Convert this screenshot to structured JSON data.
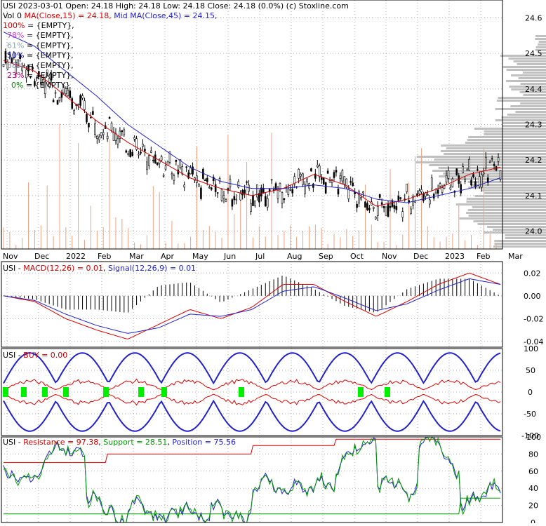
{
  "colors": {
    "background": "#ffffff",
    "grid": "#b0b0b0",
    "candle": "#000000",
    "ma_short": "#dd0000",
    "ma_mid": "#2222cc",
    "volume_bar": "#f0a080",
    "volume_profile": "#c0c0c0",
    "buy_marker": "#00ee00",
    "support": "#009900",
    "fib_100": "#cc0000",
    "fib_78": "#cc44cc",
    "fib_61": "#88aaaa",
    "fib_50": "#0000aa",
    "fib_38": "#8888aa",
    "fib_23": "#cc0088",
    "fib_0": "#008800"
  },
  "header": {
    "line1": "USI  2023-03-01 Open: 24.18  High: 24.18  Low: 24.18  Close: 24.18 (0.0%)  (c) Stoxline.com",
    "vol_prefix": "Vol 0  ",
    "ma_short_label": "MA(Close,15) = 24.18,",
    "ma_mid_label": " Mid MA(Close,45) = 24.15,",
    "fib": [
      {
        "pct": "100%",
        "text": " = {EMPTY},",
        "color": "#cc0000"
      },
      {
        "pct": "78%",
        "text": " = {EMPTY},",
        "color": "#cc44cc"
      },
      {
        "pct": "61%",
        "text": " = {EMPTY},",
        "color": "#88aaaa"
      },
      {
        "pct": "50%",
        "text": " = {EMPTY},",
        "color": "#0000aa"
      },
      {
        "pct": "38%",
        "text": " = {EMPTY},",
        "color": "#8888aa"
      },
      {
        "pct": "23%",
        "text": " = {EMPTY},",
        "color": "#cc0088"
      },
      {
        "pct": "0%",
        "text": " = {EMPTY}",
        "color": "#008800"
      }
    ]
  },
  "chart_data": [
    {
      "type": "candlestick",
      "panel": "price",
      "ylim": [
        23.95,
        24.65
      ],
      "y_ticks": [
        "24.0",
        "24.1",
        "24.2",
        "24.3",
        "24.4",
        "24.5",
        "24.6"
      ],
      "x_ticks": [
        "Nov",
        "Dec",
        "2022",
        "Feb",
        "Mar",
        "Apr",
        "May",
        "Jun",
        "Jul",
        "Aug",
        "Sep",
        "Oct",
        "Nov",
        "Dec",
        "2023",
        "Feb",
        "Mar"
      ],
      "ma_short_close": [
        24.48,
        24.45,
        24.38,
        24.31,
        24.25,
        24.2,
        24.15,
        24.12,
        24.1,
        24.12,
        24.16,
        24.13,
        24.07,
        24.09,
        24.12,
        24.16,
        24.18
      ],
      "ma_mid_close": [
        24.56,
        24.52,
        24.45,
        24.38,
        24.3,
        24.24,
        24.18,
        24.14,
        24.12,
        24.12,
        24.13,
        24.12,
        24.09,
        24.08,
        24.1,
        24.12,
        24.15
      ],
      "grid": true
    },
    {
      "type": "line",
      "panel": "macd",
      "title": "USI - MACD(12,26) = 0.01, Signal(12,26,9) = 0.01",
      "ylim": [
        -0.045,
        0.03
      ],
      "y_ticks": [
        "0.02",
        "0.00",
        "-0.02",
        "-0.04"
      ],
      "macd": [
        0.0,
        -0.005,
        -0.02,
        -0.03,
        -0.038,
        -0.025,
        -0.012,
        -0.02,
        -0.01,
        0.01,
        0.01,
        -0.005,
        -0.018,
        -0.005,
        0.01,
        0.02,
        0.01
      ],
      "signal": [
        0.0,
        -0.004,
        -0.016,
        -0.026,
        -0.033,
        -0.028,
        -0.016,
        -0.018,
        -0.012,
        0.004,
        0.008,
        -0.002,
        -0.013,
        -0.007,
        0.005,
        0.015,
        0.01
      ]
    },
    {
      "type": "line",
      "panel": "buy",
      "title": "USI - BUY = 0.00",
      "ylim": [
        -100,
        100
      ],
      "y_ticks": [
        "100",
        "50",
        "0",
        "-50",
        "-100"
      ]
    },
    {
      "type": "line",
      "panel": "position",
      "title": "USI - Resistance = 97.38, Support = 28.51, Position = 75.56",
      "resistance": 97.38,
      "support": 28.51,
      "position": 75.56,
      "ylim": [
        0,
        100
      ],
      "y_ticks": [
        "100",
        "80",
        "60",
        "40",
        "20",
        "0"
      ]
    }
  ]
}
